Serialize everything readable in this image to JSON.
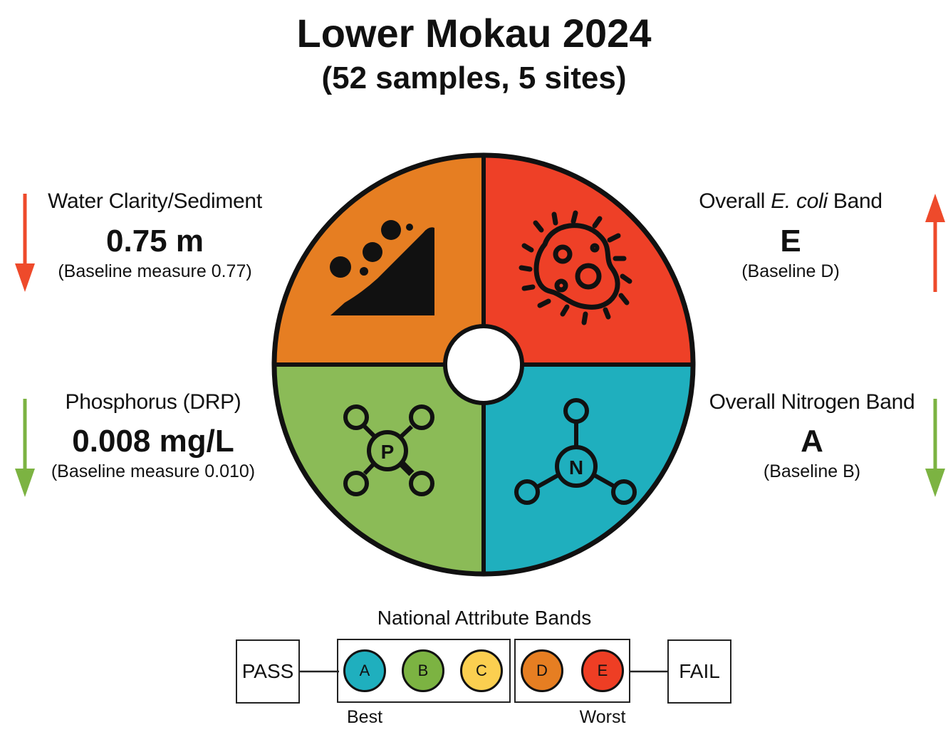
{
  "title": "Lower Mokau 2024",
  "subtitle": "(52 samples, 5 sites)",
  "colors": {
    "sediment": "#E67E22",
    "ecoli": "#EE4027",
    "phosphorus": "#8BBB57",
    "nitrogen": "#1FAFBE",
    "arrow_red": "#EE4A2B",
    "arrow_green": "#7CB342",
    "band_A": "#1FAFBE",
    "band_B": "#7CB342",
    "band_C": "#FBCF50",
    "band_D": "#E67E22",
    "band_E": "#EE3E24"
  },
  "metrics": {
    "sediment": {
      "label": "Water Clarity/Sediment",
      "value": "0.75 m",
      "baseline": "(Baseline measure 0.77)",
      "trend": "down",
      "trend_color": "red",
      "icon": "sediment-slope-icon"
    },
    "ecoli": {
      "label_prefix": "Overall ",
      "label_italic": "E. coli",
      "label_suffix": " Band",
      "value": "E",
      "baseline": "(Baseline D)",
      "trend": "up",
      "trend_color": "red",
      "icon": "bacteria-icon"
    },
    "phosphorus": {
      "label": "Phosphorus (DRP)",
      "value": "0.008 mg/L",
      "baseline": "(Baseline measure 0.010)",
      "trend": "down",
      "trend_color": "green",
      "icon": "phosphorus-molecule-icon",
      "icon_letter": "P"
    },
    "nitrogen": {
      "label": "Overall Nitrogen Band",
      "value": "A",
      "baseline": "(Baseline B)",
      "trend": "down",
      "trend_color": "green",
      "icon": "nitrogen-molecule-icon",
      "icon_letter": "N"
    }
  },
  "legend": {
    "title": "National Attribute Bands",
    "pass": "PASS",
    "fail": "FAIL",
    "bands": [
      "A",
      "B",
      "C",
      "D",
      "E"
    ],
    "best": "Best",
    "worst": "Worst"
  }
}
